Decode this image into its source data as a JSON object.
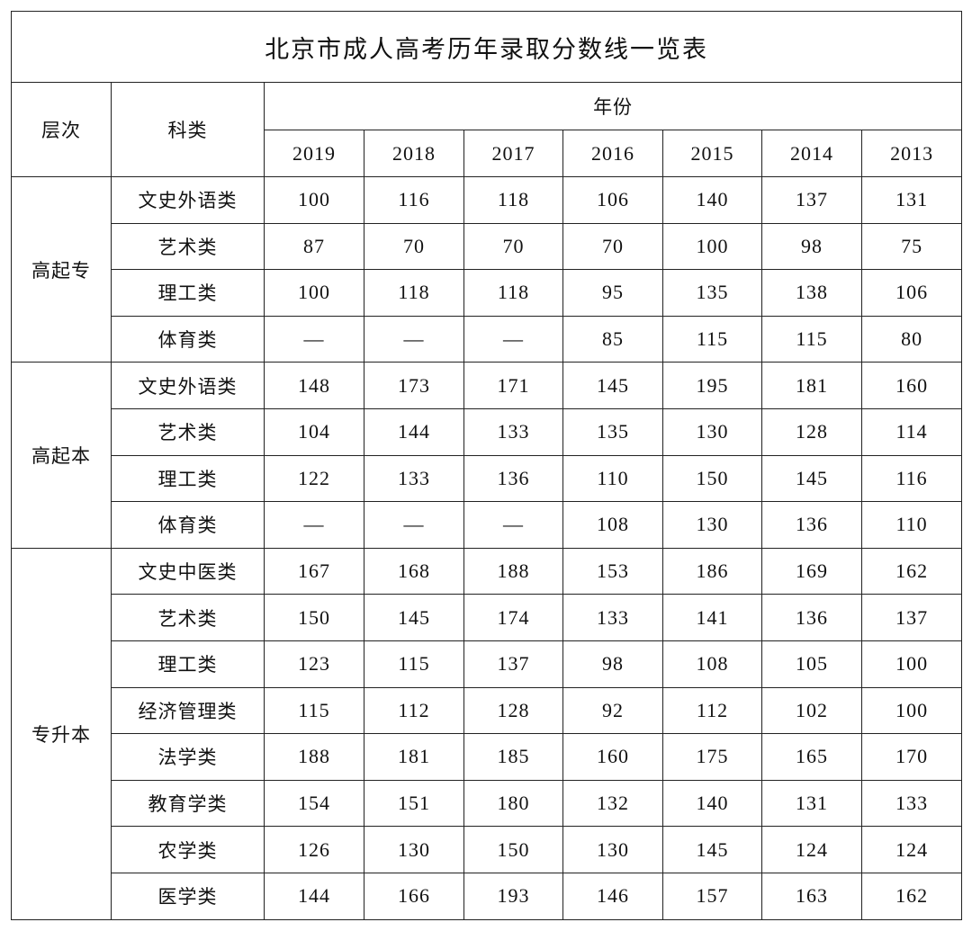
{
  "title": "北京市成人高考历年录取分数线一览表",
  "headers": {
    "level": "层次",
    "category": "科类",
    "year_group": "年份"
  },
  "years": [
    "2019",
    "2018",
    "2017",
    "2016",
    "2015",
    "2014",
    "2013"
  ],
  "groups": [
    {
      "level": "高起专",
      "rows": [
        {
          "category": "文史外语类",
          "values": [
            "100",
            "116",
            "118",
            "106",
            "140",
            "137",
            "131"
          ]
        },
        {
          "category": "艺术类",
          "values": [
            "87",
            "70",
            "70",
            "70",
            "100",
            "98",
            "75"
          ]
        },
        {
          "category": "理工类",
          "values": [
            "100",
            "118",
            "118",
            "95",
            "135",
            "138",
            "106"
          ]
        },
        {
          "category": "体育类",
          "values": [
            "—",
            "—",
            "—",
            "85",
            "115",
            "115",
            "80"
          ]
        }
      ]
    },
    {
      "level": "高起本",
      "rows": [
        {
          "category": "文史外语类",
          "values": [
            "148",
            "173",
            "171",
            "145",
            "195",
            "181",
            "160"
          ]
        },
        {
          "category": "艺术类",
          "values": [
            "104",
            "144",
            "133",
            "135",
            "130",
            "128",
            "114"
          ]
        },
        {
          "category": "理工类",
          "values": [
            "122",
            "133",
            "136",
            "110",
            "150",
            "145",
            "116"
          ]
        },
        {
          "category": "体育类",
          "values": [
            "—",
            "—",
            "—",
            "108",
            "130",
            "136",
            "110"
          ]
        }
      ]
    },
    {
      "level": "专升本",
      "rows": [
        {
          "category": "文史中医类",
          "values": [
            "167",
            "168",
            "188",
            "153",
            "186",
            "169",
            "162"
          ]
        },
        {
          "category": "艺术类",
          "values": [
            "150",
            "145",
            "174",
            "133",
            "141",
            "136",
            "137"
          ]
        },
        {
          "category": "理工类",
          "values": [
            "123",
            "115",
            "137",
            "98",
            "108",
            "105",
            "100"
          ]
        },
        {
          "category": "经济管理类",
          "values": [
            "115",
            "112",
            "128",
            "92",
            "112",
            "102",
            "100"
          ]
        },
        {
          "category": "法学类",
          "values": [
            "188",
            "181",
            "185",
            "160",
            "175",
            "165",
            "170"
          ]
        },
        {
          "category": "教育学类",
          "values": [
            "154",
            "151",
            "180",
            "132",
            "140",
            "131",
            "133"
          ]
        },
        {
          "category": "农学类",
          "values": [
            "126",
            "130",
            "150",
            "130",
            "145",
            "124",
            "124"
          ]
        },
        {
          "category": "医学类",
          "values": [
            "144",
            "166",
            "193",
            "146",
            "157",
            "163",
            "162"
          ]
        }
      ]
    }
  ]
}
